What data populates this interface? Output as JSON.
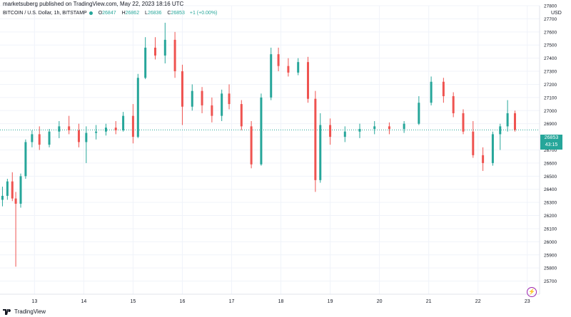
{
  "header": {
    "attribution": "marketsuberg published on TradingView.com, May 22, 2023 18:16 UTC"
  },
  "legend": {
    "symbol": "BITCOIN / U.S. Dollar, 1h, BITSTAMP",
    "open_label": "O",
    "open": "26847",
    "high_label": "H",
    "high": "26862",
    "low_label": "L",
    "low": "26836",
    "close_label": "C",
    "close": "26853",
    "change": "+1 (+0.00%)"
  },
  "price_axis": {
    "currency": "USD",
    "current_price": "26853",
    "countdown": "43:15"
  },
  "footer": {
    "brand": "TradingView"
  },
  "colors": {
    "up": "#26a69a",
    "down": "#ef5350",
    "grid": "#f0f3fa",
    "last_price_line": "#26a69a"
  },
  "chart_data": {
    "type": "candlestick",
    "title": "BITCOIN / U.S. Dollar, 1h, BITSTAMP",
    "ylim": [
      25600,
      27800
    ],
    "y_ticks": [
      25700,
      25800,
      25900,
      26000,
      26100,
      26200,
      26300,
      26400,
      26500,
      26600,
      26700,
      26800,
      26900,
      27000,
      27100,
      27200,
      27300,
      27400,
      27500,
      27600,
      27700,
      27800
    ],
    "x_ticks": [
      "13",
      "14",
      "15",
      "16",
      "17",
      "18",
      "19",
      "20",
      "21",
      "22",
      "23"
    ],
    "x_tick_days": [
      13,
      14,
      15,
      16,
      17,
      18,
      19,
      20,
      21,
      22,
      23
    ],
    "x_range": [
      12.3,
      23.25
    ],
    "last_price": 26853,
    "ohlc": [
      [
        12.35,
        26320,
        26420,
        26270,
        26350
      ],
      [
        12.45,
        26350,
        26480,
        26320,
        26460
      ],
      [
        12.55,
        26460,
        26530,
        26310,
        26330
      ],
      [
        12.62,
        26330,
        26380,
        25810,
        26290
      ],
      [
        12.72,
        26290,
        26520,
        26260,
        26500
      ],
      [
        12.82,
        26500,
        26780,
        26480,
        26760
      ],
      [
        12.95,
        26760,
        26850,
        26720,
        26820
      ],
      [
        13.1,
        26820,
        26880,
        26700,
        26740
      ],
      [
        13.3,
        26740,
        26860,
        26720,
        26840
      ],
      [
        13.5,
        26840,
        26920,
        26790,
        26880
      ],
      [
        13.7,
        26880,
        26960,
        26820,
        26850
      ],
      [
        13.9,
        26850,
        26900,
        26720,
        26760
      ],
      [
        14.05,
        26760,
        26880,
        26600,
        26830
      ],
      [
        14.25,
        26830,
        26890,
        26780,
        26840
      ],
      [
        14.45,
        26840,
        26900,
        26810,
        26870
      ],
      [
        14.65,
        26870,
        26920,
        26820,
        26850
      ],
      [
        14.8,
        26850,
        26990,
        26840,
        26960
      ],
      [
        15.0,
        26960,
        27050,
        26750,
        26800
      ],
      [
        15.1,
        26800,
        27280,
        26790,
        27250
      ],
      [
        15.25,
        27250,
        27560,
        27240,
        27480
      ],
      [
        15.45,
        27480,
        27560,
        27390,
        27420
      ],
      [
        15.65,
        27420,
        27670,
        27360,
        27540
      ],
      [
        15.85,
        27540,
        27600,
        27250,
        27300
      ],
      [
        16.0,
        27300,
        27350,
        26890,
        27030
      ],
      [
        16.2,
        27030,
        27200,
        27000,
        27150
      ],
      [
        16.4,
        27150,
        27180,
        26980,
        27040
      ],
      [
        16.6,
        27040,
        27100,
        26910,
        26960
      ],
      [
        16.8,
        26960,
        27160,
        26920,
        27130
      ],
      [
        16.95,
        27130,
        27200,
        27010,
        27050
      ],
      [
        17.2,
        27050,
        27080,
        26850,
        26880
      ],
      [
        17.4,
        26880,
        26920,
        26560,
        26590
      ],
      [
        17.6,
        26590,
        27130,
        26580,
        27100
      ],
      [
        17.8,
        27100,
        27480,
        27080,
        27430
      ],
      [
        17.95,
        27430,
        27480,
        27300,
        27340
      ],
      [
        18.15,
        27340,
        27400,
        27260,
        27290
      ],
      [
        18.35,
        27290,
        27400,
        27270,
        27370
      ],
      [
        18.55,
        27370,
        27410,
        27060,
        27090
      ],
      [
        18.7,
        27090,
        27150,
        26380,
        26470
      ],
      [
        18.8,
        26470,
        26980,
        26450,
        26890
      ],
      [
        19.0,
        26890,
        26940,
        26740,
        26800
      ],
      [
        19.3,
        26800,
        26880,
        26760,
        26840
      ],
      [
        19.6,
        26840,
        26900,
        26790,
        26860
      ],
      [
        19.9,
        26860,
        26920,
        26820,
        26880
      ],
      [
        20.2,
        26880,
        26910,
        26820,
        26860
      ],
      [
        20.5,
        26860,
        26920,
        26830,
        26900
      ],
      [
        20.8,
        26900,
        27110,
        26890,
        27060
      ],
      [
        21.05,
        27060,
        27260,
        27040,
        27220
      ],
      [
        21.3,
        27220,
        27250,
        27060,
        27110
      ],
      [
        21.5,
        27110,
        27140,
        26950,
        26980
      ],
      [
        21.7,
        26980,
        27010,
        26820,
        26840
      ],
      [
        21.9,
        26840,
        26920,
        26640,
        26660
      ],
      [
        22.1,
        26660,
        26720,
        26540,
        26600
      ],
      [
        22.3,
        26600,
        26840,
        26580,
        26820
      ],
      [
        22.45,
        26820,
        26900,
        26700,
        26880
      ],
      [
        22.6,
        26880,
        27080,
        26840,
        26980
      ],
      [
        22.75,
        26980,
        27000,
        26840,
        26853
      ]
    ]
  }
}
